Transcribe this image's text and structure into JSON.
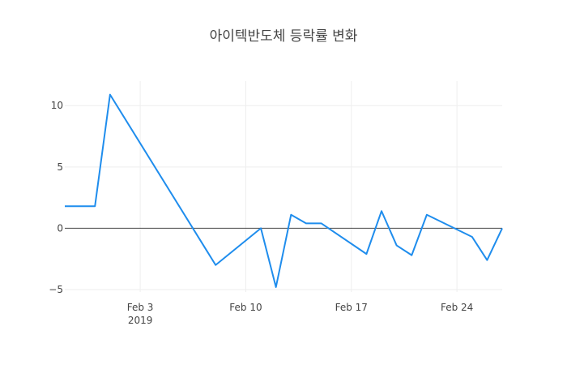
{
  "chart_data": {
    "type": "line",
    "title": "아이텍반도체 등락률 변화",
    "xlabel": "",
    "ylabel": "",
    "x": [
      "2019-01-29",
      "2019-01-31",
      "2019-02-01",
      "2019-02-08",
      "2019-02-11",
      "2019-02-12",
      "2019-02-13",
      "2019-02-14",
      "2019-02-15",
      "2019-02-18",
      "2019-02-19",
      "2019-02-20",
      "2019-02-21",
      "2019-02-22",
      "2019-02-25",
      "2019-02-26",
      "2019-02-27"
    ],
    "values": [
      1.8,
      1.8,
      10.9,
      -3.0,
      0.0,
      -4.8,
      1.1,
      0.4,
      0.4,
      -2.1,
      1.4,
      -1.4,
      -2.2,
      1.1,
      -0.7,
      -2.6,
      0.0
    ],
    "xlim": [
      "2019-01-29",
      "2019-02-27"
    ],
    "ylim": [
      -5.2,
      12.0
    ],
    "x_ticks": [
      {
        "date": "2019-02-03",
        "label": "Feb 3",
        "sublabel": "2019"
      },
      {
        "date": "2019-02-10",
        "label": "Feb 10",
        "sublabel": ""
      },
      {
        "date": "2019-02-17",
        "label": "Feb 17",
        "sublabel": ""
      },
      {
        "date": "2019-02-24",
        "label": "Feb 24",
        "sublabel": ""
      }
    ],
    "y_ticks": [
      {
        "value": 10,
        "label": "10"
      },
      {
        "value": 5,
        "label": "5"
      },
      {
        "value": 0,
        "label": "0"
      },
      {
        "value": -5,
        "label": "−5"
      }
    ],
    "grid": true,
    "legend": "none",
    "line_color": "#1f8ded"
  }
}
